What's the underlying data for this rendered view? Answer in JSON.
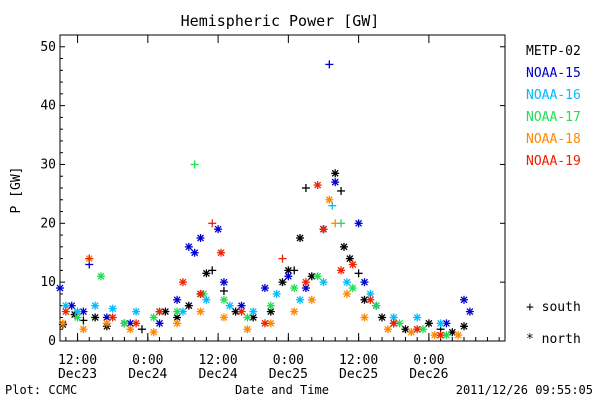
{
  "chart_data": {
    "type": "scatter",
    "title": "Hemispheric Power [GW]",
    "ylabel": "P [GW]",
    "xlabel": "Date and Time",
    "ylim": [
      0,
      52
    ],
    "xlim_hours": "2011-12-23 09:00 to 2011-12-26 13:00",
    "grid": false,
    "legend_position": "right",
    "yticks": [
      0,
      10,
      20,
      30,
      40,
      50
    ],
    "xticks": [
      {
        "time": "12:00",
        "date": "Dec23"
      },
      {
        "time": "0:00",
        "date": "Dec24"
      },
      {
        "time": "12:00",
        "date": "Dec24"
      },
      {
        "time": "0:00",
        "date": "Dec25"
      },
      {
        "time": "12:00",
        "date": "Dec25"
      },
      {
        "time": "0:00",
        "date": "Dec26"
      }
    ],
    "markers": {
      "south": "+",
      "north": "*"
    },
    "series": [
      {
        "name": "METP-02",
        "color": "#000000",
        "points": [
          {
            "x": "2011-12-23 09:30",
            "y": 2.8,
            "m": "*"
          },
          {
            "x": "2011-12-23 11:30",
            "y": 4.5,
            "m": "*"
          },
          {
            "x": "2011-12-23 13:00",
            "y": 3.5,
            "m": "+"
          },
          {
            "x": "2011-12-23 15:00",
            "y": 4,
            "m": "*"
          },
          {
            "x": "2011-12-23 17:00",
            "y": 2.5,
            "m": "*"
          },
          {
            "x": "2011-12-23 20:00",
            "y": 3,
            "m": "*"
          },
          {
            "x": "2011-12-23 23:00",
            "y": 2,
            "m": "+"
          },
          {
            "x": "2011-12-24 03:00",
            "y": 5,
            "m": "*"
          },
          {
            "x": "2011-12-24 05:00",
            "y": 4,
            "m": "*"
          },
          {
            "x": "2011-12-24 07:00",
            "y": 6,
            "m": "*"
          },
          {
            "x": "2011-12-24 09:00",
            "y": 8,
            "m": "*"
          },
          {
            "x": "2011-12-24 10:00",
            "y": 11.5,
            "m": "*"
          },
          {
            "x": "2011-12-24 11:00",
            "y": 12,
            "m": "+"
          },
          {
            "x": "2011-12-24 13:00",
            "y": 8.5,
            "m": "+"
          },
          {
            "x": "2011-12-24 15:00",
            "y": 5,
            "m": "*"
          },
          {
            "x": "2011-12-24 18:00",
            "y": 4,
            "m": "*"
          },
          {
            "x": "2011-12-24 21:00",
            "y": 5,
            "m": "*"
          },
          {
            "x": "2011-12-24 23:00",
            "y": 10,
            "m": "*"
          },
          {
            "x": "2011-12-25 00:00",
            "y": 12,
            "m": "*"
          },
          {
            "x": "2011-12-25 01:00",
            "y": 12,
            "m": "+"
          },
          {
            "x": "2011-12-25 02:00",
            "y": 17.5,
            "m": "*"
          },
          {
            "x": "2011-12-25 03:00",
            "y": 26,
            "m": "+"
          },
          {
            "x": "2011-12-25 04:00",
            "y": 11,
            "m": "*"
          },
          {
            "x": "2011-12-25 06:00",
            "y": 19,
            "m": "*"
          },
          {
            "x": "2011-12-25 08:00",
            "y": 28.5,
            "m": "*"
          },
          {
            "x": "2011-12-25 09:00",
            "y": 25.5,
            "m": "+"
          },
          {
            "x": "2011-12-25 09:30",
            "y": 16,
            "m": "*"
          },
          {
            "x": "2011-12-25 10:30",
            "y": 14,
            "m": "*"
          },
          {
            "x": "2011-12-25 12:00",
            "y": 11.5,
            "m": "+"
          },
          {
            "x": "2011-12-25 13:00",
            "y": 7,
            "m": "*"
          },
          {
            "x": "2011-12-25 16:00",
            "y": 4,
            "m": "*"
          },
          {
            "x": "2011-12-25 20:00",
            "y": 2,
            "m": "*"
          },
          {
            "x": "2011-12-26 00:00",
            "y": 3,
            "m": "*"
          },
          {
            "x": "2011-12-26 02:00",
            "y": 2,
            "m": "+"
          },
          {
            "x": "2011-12-26 04:00",
            "y": 1.5,
            "m": "*"
          },
          {
            "x": "2011-12-26 06:00",
            "y": 2.5,
            "m": "*"
          }
        ]
      },
      {
        "name": "NOAA-15",
        "color": "#0000cc",
        "points": [
          {
            "x": "2011-12-23 09:00",
            "y": 9,
            "m": "*"
          },
          {
            "x": "2011-12-23 11:00",
            "y": 6,
            "m": "*"
          },
          {
            "x": "2011-12-23 13:00",
            "y": 5,
            "m": "*"
          },
          {
            "x": "2011-12-23 14:00",
            "y": 13,
            "m": "+"
          },
          {
            "x": "2011-12-23 17:00",
            "y": 4,
            "m": "*"
          },
          {
            "x": "2011-12-23 21:00",
            "y": 3,
            "m": "*"
          },
          {
            "x": "2011-12-24 02:00",
            "y": 3,
            "m": "*"
          },
          {
            "x": "2011-12-24 05:00",
            "y": 7,
            "m": "*"
          },
          {
            "x": "2011-12-24 07:00",
            "y": 16,
            "m": "*"
          },
          {
            "x": "2011-12-24 08:00",
            "y": 15,
            "m": "*"
          },
          {
            "x": "2011-12-24 09:00",
            "y": 17.5,
            "m": "*"
          },
          {
            "x": "2011-12-24 12:00",
            "y": 19,
            "m": "*"
          },
          {
            "x": "2011-12-24 13:00",
            "y": 10,
            "m": "*"
          },
          {
            "x": "2011-12-24 16:00",
            "y": 6,
            "m": "*"
          },
          {
            "x": "2011-12-24 20:00",
            "y": 9,
            "m": "*"
          },
          {
            "x": "2011-12-25 00:00",
            "y": 11,
            "m": "*"
          },
          {
            "x": "2011-12-25 03:00",
            "y": 9,
            "m": "*"
          },
          {
            "x": "2011-12-25 06:00",
            "y": 19,
            "m": "*"
          },
          {
            "x": "2011-12-25 07:00",
            "y": 47,
            "m": "+"
          },
          {
            "x": "2011-12-25 08:00",
            "y": 27,
            "m": "*"
          },
          {
            "x": "2011-12-25 12:00",
            "y": 20,
            "m": "*"
          },
          {
            "x": "2011-12-25 13:00",
            "y": 10,
            "m": "*"
          },
          {
            "x": "2011-12-25 15:00",
            "y": 6,
            "m": "*"
          },
          {
            "x": "2011-12-25 18:00",
            "y": 3,
            "m": "*"
          },
          {
            "x": "2011-12-26 03:00",
            "y": 3,
            "m": "*"
          },
          {
            "x": "2011-12-26 06:00",
            "y": 7,
            "m": "*"
          },
          {
            "x": "2011-12-26 07:00",
            "y": 5,
            "m": "*"
          }
        ]
      },
      {
        "name": "NOAA-16",
        "color": "#00bbff",
        "points": [
          {
            "x": "2011-12-23 10:00",
            "y": 6,
            "m": "*"
          },
          {
            "x": "2011-12-23 12:00",
            "y": 5,
            "m": "*"
          },
          {
            "x": "2011-12-23 15:00",
            "y": 6,
            "m": "*"
          },
          {
            "x": "2011-12-23 18:00",
            "y": 5.5,
            "m": "*"
          },
          {
            "x": "2011-12-23 22:00",
            "y": 5,
            "m": "*"
          },
          {
            "x": "2011-12-24 02:00",
            "y": 5,
            "m": "*"
          },
          {
            "x": "2011-12-24 06:00",
            "y": 5,
            "m": "*"
          },
          {
            "x": "2011-12-24 10:00",
            "y": 7,
            "m": "*"
          },
          {
            "x": "2011-12-24 14:00",
            "y": 6,
            "m": "*"
          },
          {
            "x": "2011-12-24 18:00",
            "y": 5,
            "m": "*"
          },
          {
            "x": "2011-12-24 22:00",
            "y": 8,
            "m": "*"
          },
          {
            "x": "2011-12-25 02:00",
            "y": 7,
            "m": "*"
          },
          {
            "x": "2011-12-25 06:00",
            "y": 10,
            "m": "*"
          },
          {
            "x": "2011-12-25 07:30",
            "y": 23,
            "m": "+"
          },
          {
            "x": "2011-12-25 10:00",
            "y": 10,
            "m": "*"
          },
          {
            "x": "2011-12-25 14:00",
            "y": 8,
            "m": "*"
          },
          {
            "x": "2011-12-25 18:00",
            "y": 4,
            "m": "*"
          },
          {
            "x": "2011-12-25 22:00",
            "y": 4,
            "m": "*"
          },
          {
            "x": "2011-12-26 02:00",
            "y": 3,
            "m": "*"
          }
        ]
      },
      {
        "name": "NOAA-17",
        "color": "#22dd55",
        "points": [
          {
            "x": "2011-12-23 12:00",
            "y": 4,
            "m": "*"
          },
          {
            "x": "2011-12-23 16:00",
            "y": 11,
            "m": "*"
          },
          {
            "x": "2011-12-23 20:00",
            "y": 3,
            "m": "*"
          },
          {
            "x": "2011-12-24 01:00",
            "y": 4,
            "m": "*"
          },
          {
            "x": "2011-12-24 05:00",
            "y": 5,
            "m": "*"
          },
          {
            "x": "2011-12-24 08:00",
            "y": 30,
            "m": "+"
          },
          {
            "x": "2011-12-24 09:30",
            "y": 8,
            "m": "*"
          },
          {
            "x": "2011-12-24 13:00",
            "y": 7,
            "m": "*"
          },
          {
            "x": "2011-12-24 17:00",
            "y": 4,
            "m": "*"
          },
          {
            "x": "2011-12-24 21:00",
            "y": 6,
            "m": "*"
          },
          {
            "x": "2011-12-25 01:00",
            "y": 9,
            "m": "*"
          },
          {
            "x": "2011-12-25 05:00",
            "y": 11,
            "m": "*"
          },
          {
            "x": "2011-12-25 09:00",
            "y": 20,
            "m": "+"
          },
          {
            "x": "2011-12-25 11:00",
            "y": 9,
            "m": "*"
          },
          {
            "x": "2011-12-25 15:00",
            "y": 6,
            "m": "*"
          },
          {
            "x": "2011-12-25 19:00",
            "y": 3,
            "m": "*"
          },
          {
            "x": "2011-12-25 23:00",
            "y": 2,
            "m": "*"
          },
          {
            "x": "2011-12-26 03:00",
            "y": 1,
            "m": "*"
          }
        ]
      },
      {
        "name": "NOAA-18",
        "color": "#ff8800",
        "points": [
          {
            "x": "2011-12-23 09:30",
            "y": 3,
            "m": "*"
          },
          {
            "x": "2011-12-23 13:00",
            "y": 2,
            "m": "*"
          },
          {
            "x": "2011-12-23 14:00",
            "y": 14,
            "m": "*"
          },
          {
            "x": "2011-12-23 17:00",
            "y": 3,
            "m": "*"
          },
          {
            "x": "2011-12-23 21:00",
            "y": 2,
            "m": "*"
          },
          {
            "x": "2011-12-24 01:00",
            "y": 1.5,
            "m": "*"
          },
          {
            "x": "2011-12-24 05:00",
            "y": 3,
            "m": "*"
          },
          {
            "x": "2011-12-24 09:00",
            "y": 5,
            "m": "*"
          },
          {
            "x": "2011-12-24 13:00",
            "y": 4,
            "m": "*"
          },
          {
            "x": "2011-12-24 17:00",
            "y": 2,
            "m": "*"
          },
          {
            "x": "2011-12-24 21:00",
            "y": 3,
            "m": "*"
          },
          {
            "x": "2011-12-25 01:00",
            "y": 5,
            "m": "*"
          },
          {
            "x": "2011-12-25 04:00",
            "y": 7,
            "m": "*"
          },
          {
            "x": "2011-12-25 07:00",
            "y": 24,
            "m": "*"
          },
          {
            "x": "2011-12-25 08:00",
            "y": 20,
            "m": "+"
          },
          {
            "x": "2011-12-25 10:00",
            "y": 8,
            "m": "*"
          },
          {
            "x": "2011-12-25 13:00",
            "y": 4,
            "m": "*"
          },
          {
            "x": "2011-12-25 17:00",
            "y": 2,
            "m": "*"
          },
          {
            "x": "2011-12-25 21:00",
            "y": 1.5,
            "m": "*"
          },
          {
            "x": "2011-12-26 01:00",
            "y": 1,
            "m": "*"
          },
          {
            "x": "2011-12-26 05:00",
            "y": 1,
            "m": "*"
          }
        ]
      },
      {
        "name": "NOAA-19",
        "color": "#ee2200",
        "points": [
          {
            "x": "2011-12-23 10:00",
            "y": 5,
            "m": "*"
          },
          {
            "x": "2011-12-23 14:00",
            "y": 14,
            "m": "+"
          },
          {
            "x": "2011-12-23 18:00",
            "y": 4,
            "m": "*"
          },
          {
            "x": "2011-12-23 22:00",
            "y": 3,
            "m": "*"
          },
          {
            "x": "2011-12-24 02:00",
            "y": 5,
            "m": "*"
          },
          {
            "x": "2011-12-24 06:00",
            "y": 10,
            "m": "*"
          },
          {
            "x": "2011-12-24 09:00",
            "y": 8,
            "m": "*"
          },
          {
            "x": "2011-12-24 11:00",
            "y": 20,
            "m": "+"
          },
          {
            "x": "2011-12-24 12:30",
            "y": 15,
            "m": "*"
          },
          {
            "x": "2011-12-24 16:00",
            "y": 5,
            "m": "*"
          },
          {
            "x": "2011-12-24 20:00",
            "y": 3,
            "m": "*"
          },
          {
            "x": "2011-12-24 23:00",
            "y": 14,
            "m": "+"
          },
          {
            "x": "2011-12-25 03:00",
            "y": 10,
            "m": "*"
          },
          {
            "x": "2011-12-25 05:00",
            "y": 26.5,
            "m": "*"
          },
          {
            "x": "2011-12-25 06:00",
            "y": 19,
            "m": "*"
          },
          {
            "x": "2011-12-25 09:00",
            "y": 12,
            "m": "*"
          },
          {
            "x": "2011-12-25 11:00",
            "y": 13,
            "m": "*"
          },
          {
            "x": "2011-12-25 14:00",
            "y": 7,
            "m": "*"
          },
          {
            "x": "2011-12-25 18:00",
            "y": 3,
            "m": "*"
          },
          {
            "x": "2011-12-25 22:00",
            "y": 2,
            "m": "*"
          },
          {
            "x": "2011-12-26 02:00",
            "y": 1,
            "m": "*"
          }
        ]
      }
    ]
  },
  "legend_markers": {
    "south_label": "south",
    "north_label": "north"
  },
  "footer": {
    "left": "Plot: CCMC",
    "center": "Date and Time",
    "right": "2011/12/26 09:55:05"
  }
}
